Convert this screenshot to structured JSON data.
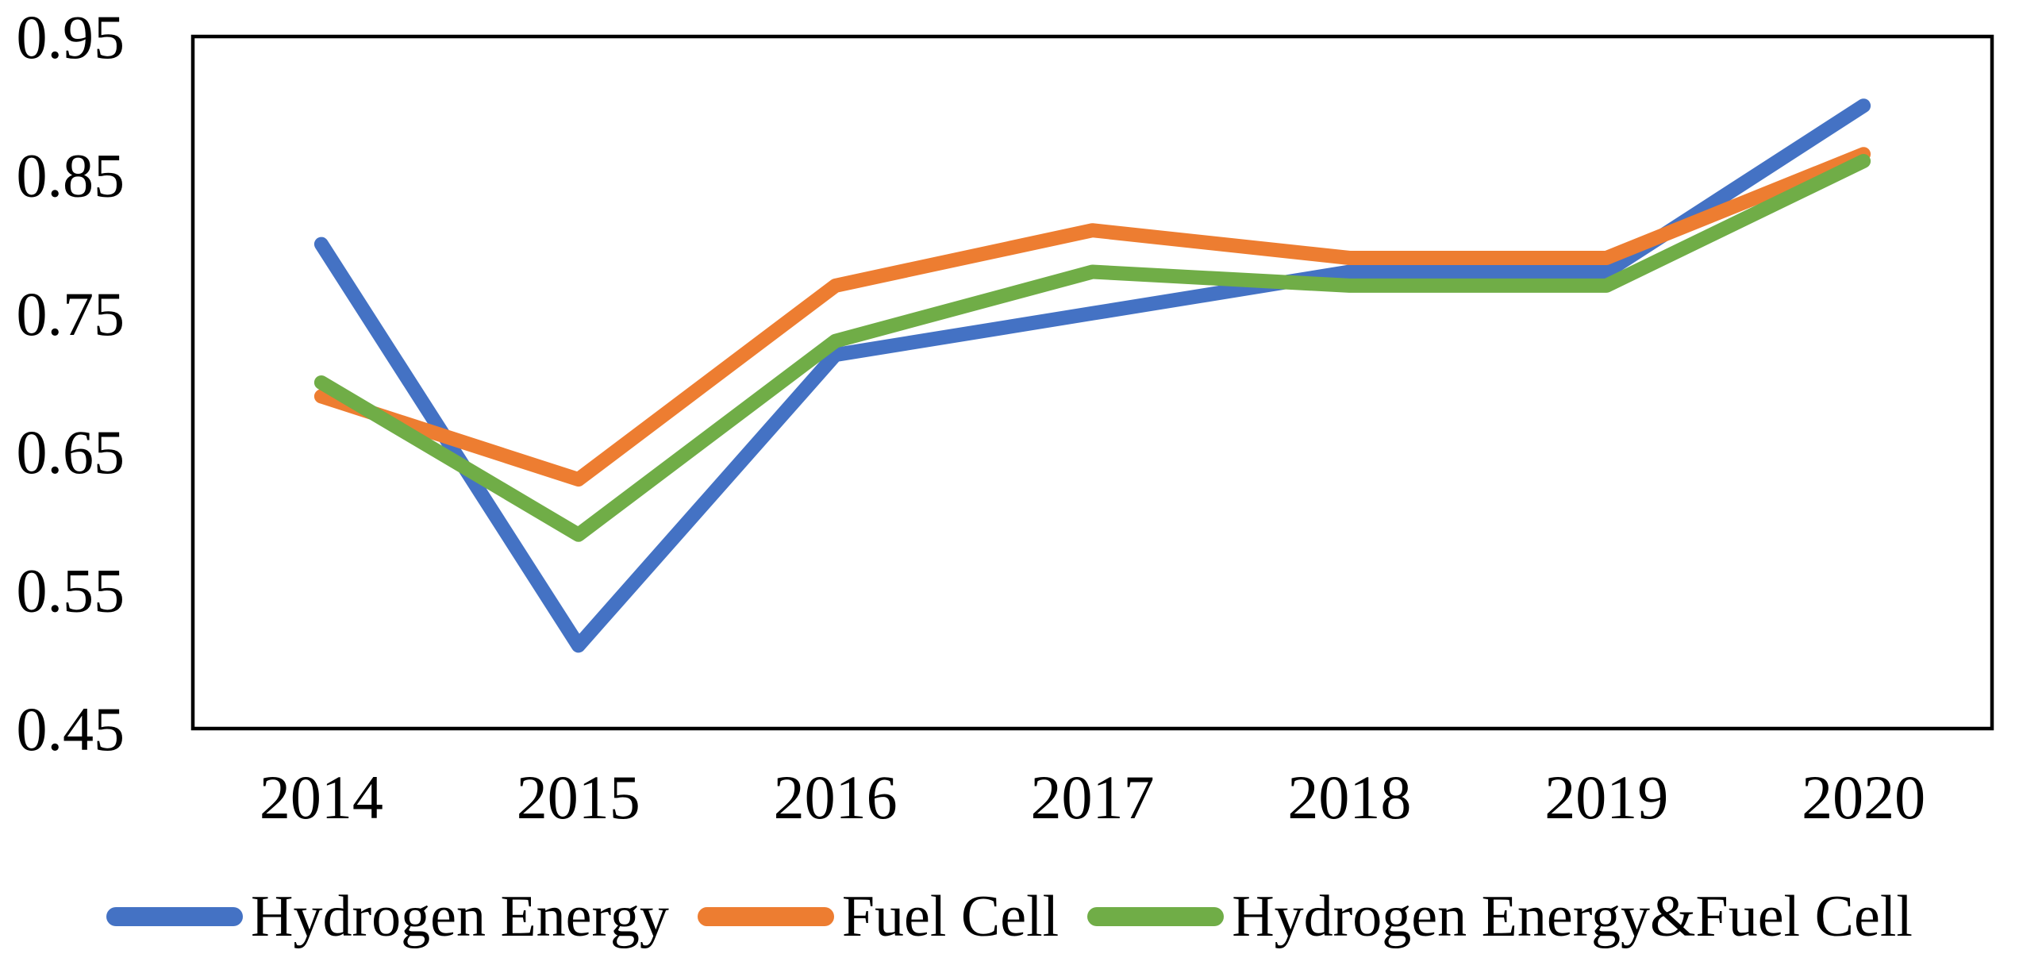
{
  "chart_data": {
    "type": "line",
    "title": "",
    "xlabel": "",
    "ylabel": "",
    "categories": [
      "2014",
      "2015",
      "2016",
      "2017",
      "2018",
      "2019",
      "2020"
    ],
    "series": [
      {
        "name": "Hydrogen Energy",
        "color": "#4472C4",
        "values": [
          0.8,
          0.51,
          0.72,
          0.75,
          0.78,
          0.78,
          0.9
        ]
      },
      {
        "name": "Fuel Cell",
        "color": "#ED7D31",
        "values": [
          0.69,
          0.63,
          0.77,
          0.81,
          0.79,
          0.79,
          0.865
        ]
      },
      {
        "name": "Hydrogen Energy&Fuel Cell",
        "color": "#70AD47",
        "values": [
          0.7,
          0.59,
          0.73,
          0.78,
          0.77,
          0.77,
          0.86
        ]
      }
    ],
    "ylim": [
      0.45,
      0.95
    ],
    "ytick_step": 0.1,
    "yticks": [
      "0.95",
      "0.85",
      "0.75",
      "0.65",
      "0.55",
      "0.45"
    ],
    "grid": false,
    "legend_position": "bottom",
    "axis_color": "#000000",
    "background_color": "#ffffff",
    "line_width": 18
  }
}
